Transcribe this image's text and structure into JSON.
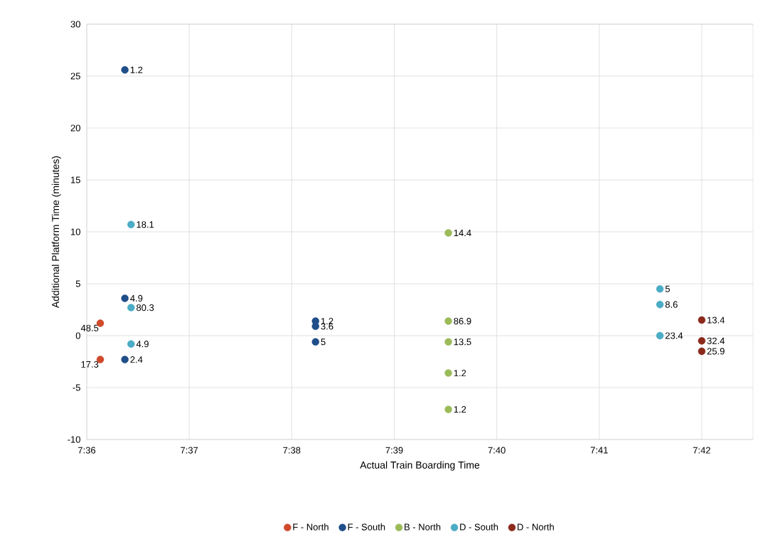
{
  "chart_data": {
    "type": "scatter",
    "xlabel": "Actual Train Boarding Time",
    "ylabel": "Additional Platform Time (minutes)",
    "xlim": [
      7.6,
      7.708333
    ],
    "ylim": [
      -10,
      30
    ],
    "xticks": [
      {
        "value": 7.6,
        "label": "7:36"
      },
      {
        "value": 7.616667,
        "label": "7:37"
      },
      {
        "value": 7.633333,
        "label": "7:38"
      },
      {
        "value": 7.65,
        "label": "7:39"
      },
      {
        "value": 7.666667,
        "label": "7:40"
      },
      {
        "value": 7.683333,
        "label": "7:41"
      },
      {
        "value": 7.7,
        "label": "7:42"
      }
    ],
    "yticks": [
      -10,
      -5,
      0,
      5,
      10,
      15,
      20,
      25,
      30
    ],
    "grid": true,
    "legend": "bottom",
    "series": [
      {
        "name": "F - North",
        "color": "#d04a2b",
        "x": [
          7.6022,
          7.6022
        ],
        "values": [
          1.2,
          -2.3
        ]
      },
      {
        "name": "F - South",
        "color": "#1f4e89",
        "x": [
          7.6062,
          7.6062,
          7.6062,
          7.6372,
          7.6372,
          7.6372
        ],
        "values": [
          25.6,
          3.6,
          -2.3,
          1.4,
          0.9,
          -0.6
        ]
      },
      {
        "name": "B - North",
        "color": "#9bbb59",
        "x": [
          7.6588,
          7.6588,
          7.6588,
          7.6588,
          7.6588
        ],
        "values": [
          9.9,
          1.4,
          -0.6,
          -3.6,
          -7.1
        ]
      },
      {
        "name": "D - South",
        "color": "#4bacc6",
        "x": [
          7.6072,
          7.6072,
          7.6072,
          7.6932,
          7.6932,
          7.6932
        ],
        "values": [
          10.7,
          2.7,
          -0.8,
          4.5,
          3.0,
          0.0
        ]
      },
      {
        "name": "D - North",
        "color": "#8b2a1c",
        "x": [
          7.7,
          7.7,
          7.7
        ],
        "values": [
          1.5,
          -0.5,
          -1.5
        ]
      }
    ],
    "annotations": [
      {
        "text": "48.5",
        "x": 7.6022,
        "y": 1.2
      },
      {
        "text": "17.3",
        "x": 7.6022,
        "y": -2.3
      },
      {
        "text": "1.2",
        "x": 7.6062,
        "y": 25.6
      },
      {
        "text": "4.9",
        "x": 7.6062,
        "y": 3.6
      },
      {
        "text": "2.4",
        "x": 7.6062,
        "y": -2.3
      },
      {
        "text": "1.2",
        "x": 7.6372,
        "y": 1.4
      },
      {
        "text": "3.6",
        "x": 7.6372,
        "y": 0.9
      },
      {
        "text": "5",
        "x": 7.6372,
        "y": -0.6
      },
      {
        "text": "14.4",
        "x": 7.6588,
        "y": 9.9
      },
      {
        "text": "86.9",
        "x": 7.6588,
        "y": 1.4
      },
      {
        "text": "13.5",
        "x": 7.6588,
        "y": -0.6
      },
      {
        "text": "1.2",
        "x": 7.6588,
        "y": -3.6
      },
      {
        "text": "1.2",
        "x": 7.6588,
        "y": -7.1
      },
      {
        "text": "18.1",
        "x": 7.6072,
        "y": 10.7
      },
      {
        "text": "80.3",
        "x": 7.6072,
        "y": 2.7
      },
      {
        "text": "4.9",
        "x": 7.6072,
        "y": -0.8
      },
      {
        "text": "5",
        "x": 7.6932,
        "y": 4.5
      },
      {
        "text": "8.6",
        "x": 7.6932,
        "y": 3.0
      },
      {
        "text": "23.4",
        "x": 7.6932,
        "y": 0.0
      },
      {
        "text": "13.4",
        "x": 7.7,
        "y": 1.5
      },
      {
        "text": "32.4",
        "x": 7.7,
        "y": -0.5
      },
      {
        "text": "25.9",
        "x": 7.7,
        "y": -1.5
      }
    ]
  }
}
